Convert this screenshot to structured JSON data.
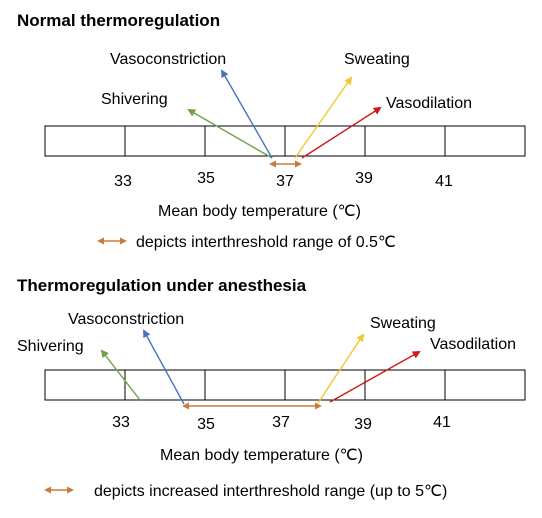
{
  "panels": [
    {
      "title": "Normal thermoregulation",
      "labels": {
        "shivering": "Shivering",
        "vasoconstriction": "Vasoconstriction",
        "sweating": "Sweating",
        "vasodilation": "Vasodilation"
      },
      "ticks": [
        "33",
        "35",
        "37",
        "39",
        "41"
      ],
      "axis_label": "Mean body temperature (℃)",
      "legend_text": "depicts interthreshold range of 0.5℃"
    },
    {
      "title": "Thermoregulation under anesthesia",
      "labels": {
        "shivering": "Shivering",
        "vasoconstriction": "Vasoconstriction",
        "sweating": "Sweating",
        "vasodilation": "Vasodilation"
      },
      "ticks": [
        "33",
        "35",
        "37",
        "39",
        "41"
      ],
      "axis_label": "Mean body temperature (℃)",
      "legend_text": "depicts increased interthreshold range (up to 5℃)"
    }
  ],
  "colors": {
    "shivering": "#70a04a",
    "vasoconstriction": "#4a72c4",
    "sweating": "#f0c832",
    "vasodilation": "#d01818",
    "range": "#c87b3c"
  }
}
